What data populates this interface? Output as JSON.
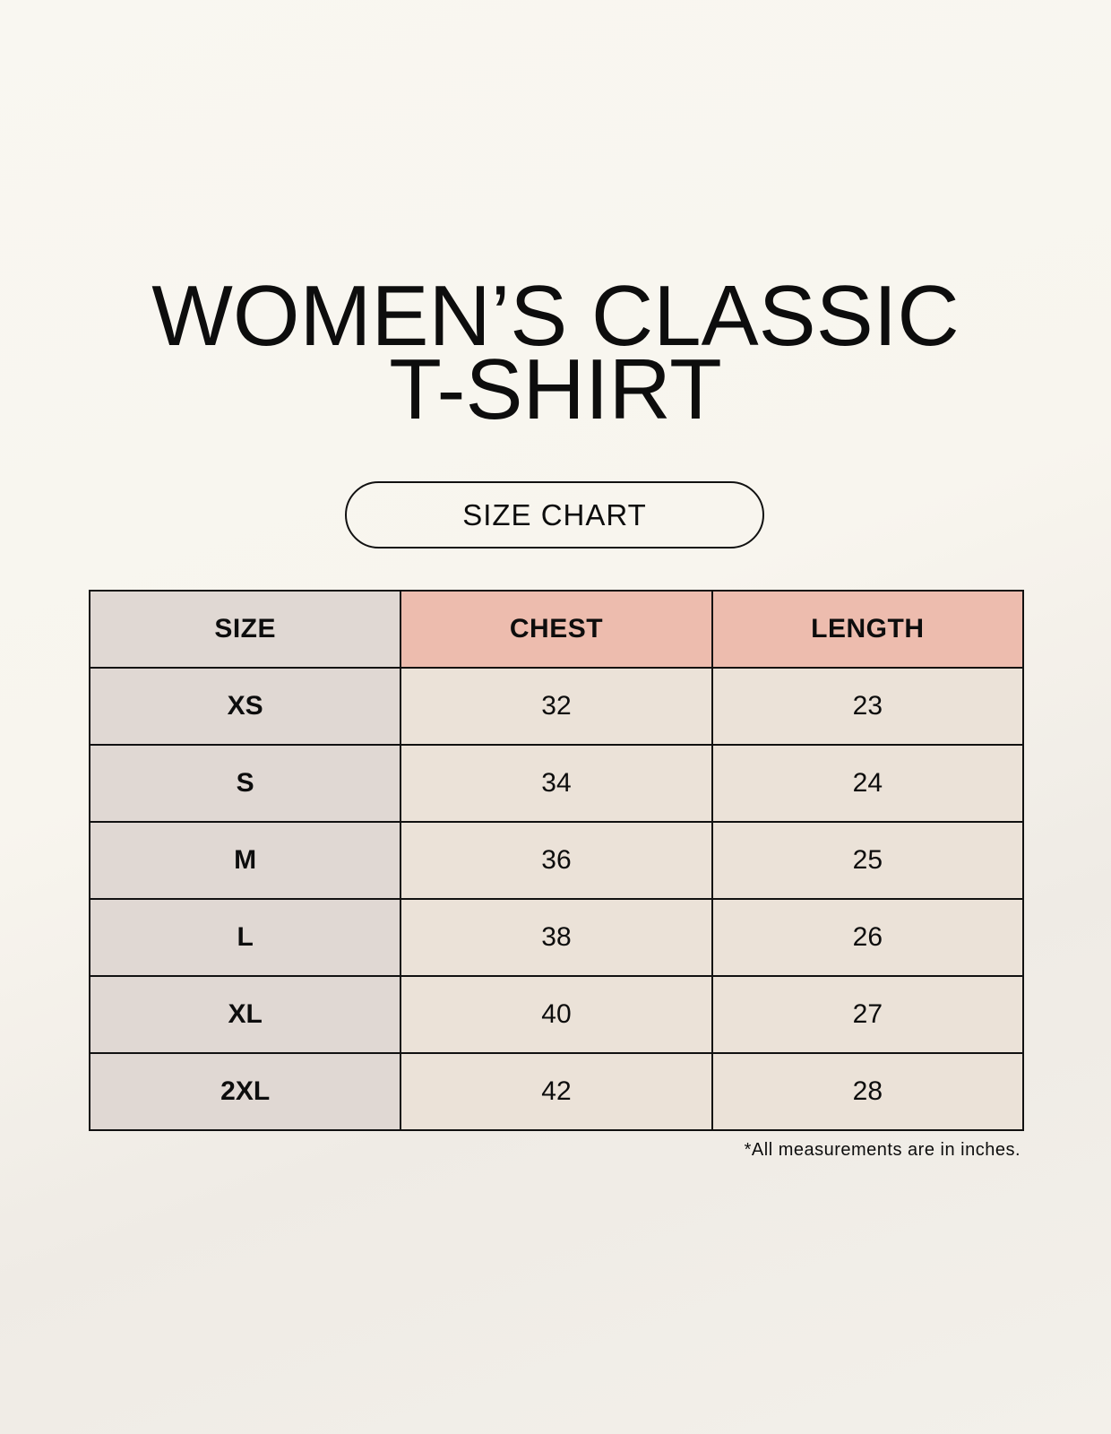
{
  "title": {
    "line1": "WOMEN’S CLASSIC",
    "line2": "T-SHIRT"
  },
  "badge": "SIZE CHART",
  "table": {
    "headers": [
      "SIZE",
      "CHEST",
      "LENGTH"
    ],
    "rows": [
      [
        "XS",
        "32",
        "23"
      ],
      [
        "S",
        "34",
        "24"
      ],
      [
        "M",
        "36",
        "25"
      ],
      [
        "L",
        "38",
        "26"
      ],
      [
        "XL",
        "40",
        "27"
      ],
      [
        "2XL",
        "42",
        "28"
      ]
    ]
  },
  "footnote": "*All measurements are in inches.",
  "colors": {
    "size_column": "#e0d8d3",
    "header_accent": "#edbcae",
    "cell": "#ebe2d8"
  }
}
